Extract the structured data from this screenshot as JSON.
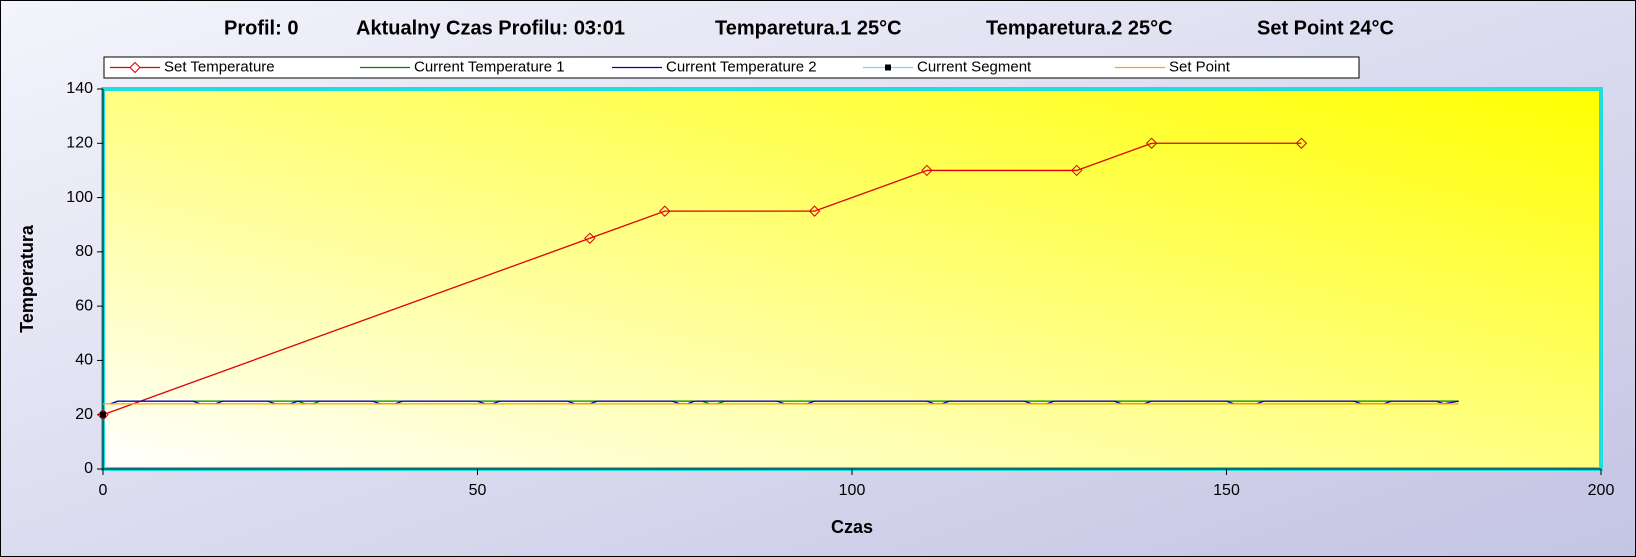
{
  "header": {
    "items": [
      "Profil: 0",
      "Aktualny Czas Profilu: 03:01",
      "Temparetura.1  25°C",
      "Temparetura.2  25°C",
      "Set Point 24°C"
    ]
  },
  "chart_data": {
    "type": "line",
    "x_label": "Czas",
    "y_label": "Temperatura",
    "xlim": [
      0,
      200
    ],
    "xticks": [
      0,
      50,
      100,
      150,
      200
    ],
    "ylim": [
      0,
      140
    ],
    "yticks": [
      0,
      20,
      40,
      60,
      80,
      100,
      120,
      140
    ],
    "legend": "top",
    "series": [
      {
        "name": "Set Temperature",
        "color": "#e00000",
        "marker": "diamond",
        "x": [
          0,
          65,
          75,
          95,
          110,
          130,
          140,
          160
        ],
        "values": [
          20,
          85,
          95,
          95,
          110,
          110,
          120,
          120
        ]
      },
      {
        "name": "Current Temperature 1",
        "color": "#008000",
        "x": [
          1,
          2,
          26,
          27,
          28,
          29,
          80,
          81,
          82,
          83,
          181
        ],
        "values": [
          24,
          25,
          25,
          24,
          24,
          25,
          25,
          24,
          24,
          25,
          25
        ]
      },
      {
        "name": "Current Temperature 2",
        "color": "#0000c0",
        "x": [
          1,
          2,
          12,
          13,
          15,
          16,
          22,
          23,
          25,
          26,
          36,
          37,
          39,
          40,
          50,
          51,
          52,
          53,
          62,
          63,
          65,
          66,
          76,
          77,
          78,
          79,
          90,
          91,
          94,
          95,
          110,
          111,
          112,
          113,
          123,
          124,
          126,
          127,
          135,
          136,
          139,
          140,
          150,
          151,
          154,
          155,
          167,
          168,
          171,
          172,
          178,
          179,
          181
        ],
        "values": [
          24,
          25,
          25,
          24,
          24,
          25,
          25,
          24,
          24,
          25,
          25,
          24,
          24,
          25,
          25,
          24,
          24,
          25,
          25,
          24,
          24,
          25,
          25,
          24,
          24,
          25,
          25,
          24,
          24,
          25,
          25,
          24,
          24,
          25,
          25,
          24,
          24,
          25,
          25,
          24,
          24,
          25,
          25,
          24,
          24,
          25,
          25,
          24,
          24,
          25,
          25,
          24,
          25
        ]
      },
      {
        "name": "Current Segment",
        "color": "#87cefa",
        "marker": "square",
        "x": [
          0
        ],
        "values": [
          20
        ]
      },
      {
        "name": "Set Point",
        "color": "#ffa500",
        "x": [
          0,
          181
        ],
        "values": [
          24,
          24
        ]
      }
    ]
  }
}
